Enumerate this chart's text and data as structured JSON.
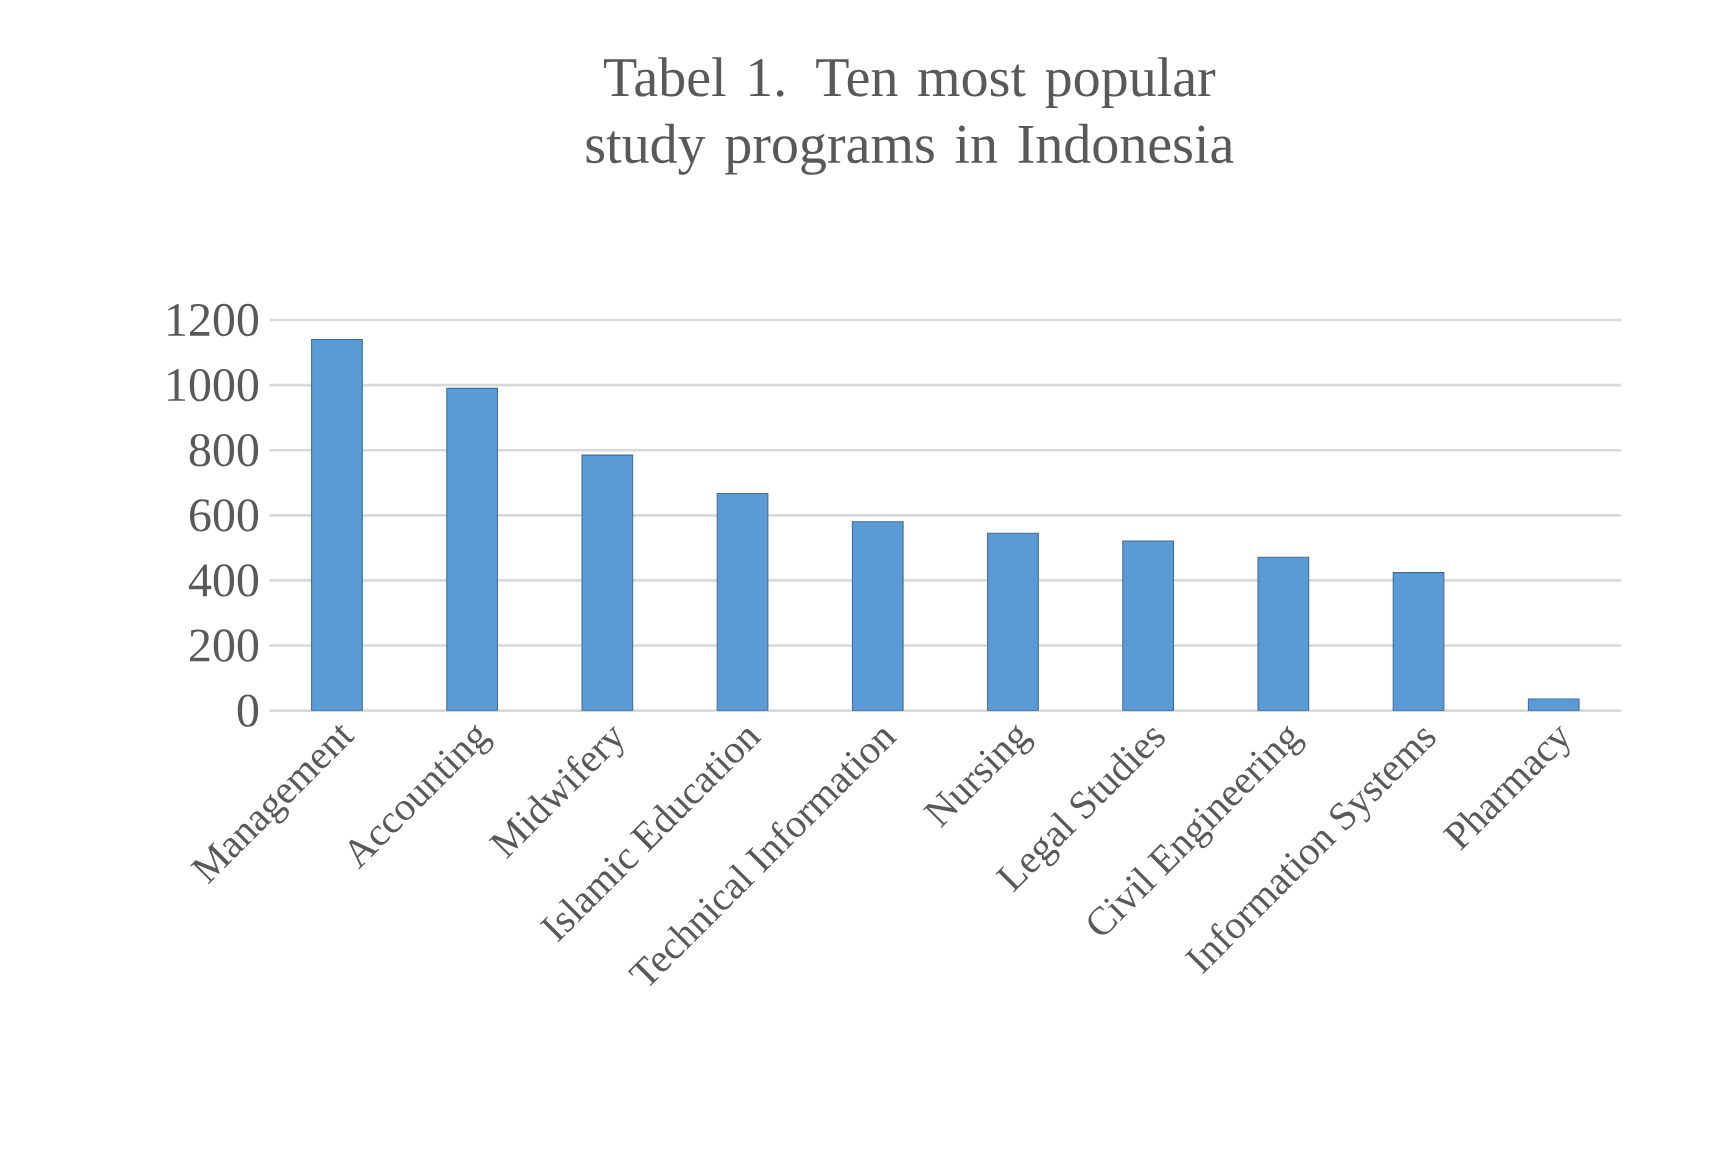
{
  "chart_data": {
    "type": "bar",
    "title": "Tabel 1. Ten most popular study programs in Indonesia",
    "categories": [
      "Management",
      "Accounting",
      "Midwifery",
      "Islamic Education",
      "Technical Information",
      "Nursing",
      "Legal Studies",
      "Civil Engineering",
      "Information Systems",
      "Pharmacy"
    ],
    "values": [
      1140,
      990,
      785,
      667,
      580,
      545,
      521,
      471,
      424,
      36
    ],
    "color": "#5b9bd5",
    "ylim": [
      0,
      1200
    ],
    "yticks": [
      0,
      200,
      400,
      600,
      800,
      1000,
      1200
    ],
    "grid": "y"
  }
}
